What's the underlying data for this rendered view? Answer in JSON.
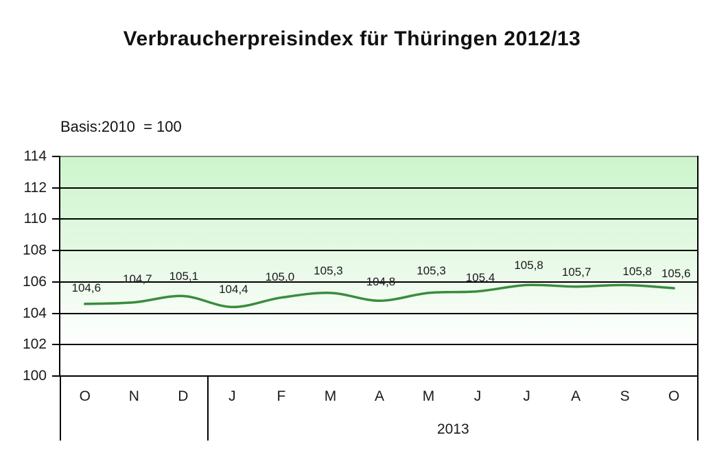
{
  "title": "Verbraucherpreisindex für Thüringen 2012/13",
  "subtitle": "Basis:2010  = 100",
  "chart_data": {
    "type": "line",
    "title": "Verbraucherpreisindex für Thüringen 2012/13",
    "subtitle": "Basis:2010  = 100",
    "x": [
      "O",
      "N",
      "D",
      "J",
      "F",
      "M",
      "A",
      "M",
      "J",
      "J",
      "A",
      "S",
      "O"
    ],
    "values": [
      104.6,
      104.7,
      105.1,
      104.4,
      105.0,
      105.3,
      104.8,
      105.3,
      105.4,
      105.8,
      105.7,
      105.8,
      105.6
    ],
    "point_labels": [
      "104,6",
      "104,7",
      "105,1",
      "104,4",
      "105,0",
      "105,3",
      "104,8",
      "105,3",
      "105,4",
      "105,8",
      "105,7",
      "105,8",
      "105,6"
    ],
    "xlabel": "",
    "ylabel": "",
    "ylim": [
      100,
      114
    ],
    "yticks": [
      100,
      102,
      104,
      106,
      108,
      110,
      112,
      114
    ],
    "grid": true,
    "legend": "none",
    "x_group_labels": [
      {
        "label": "2013",
        "from_index": 3,
        "to_index": 12
      }
    ],
    "colors": {
      "line": "#3a8c3d",
      "gridline": "#000000",
      "axis": "#000000",
      "plot_border_top": "#7f7f7f",
      "plot_bg_top": "#ccf5cb",
      "plot_bg_bottom": "#ffffff",
      "text": "#1a1a1a"
    }
  }
}
